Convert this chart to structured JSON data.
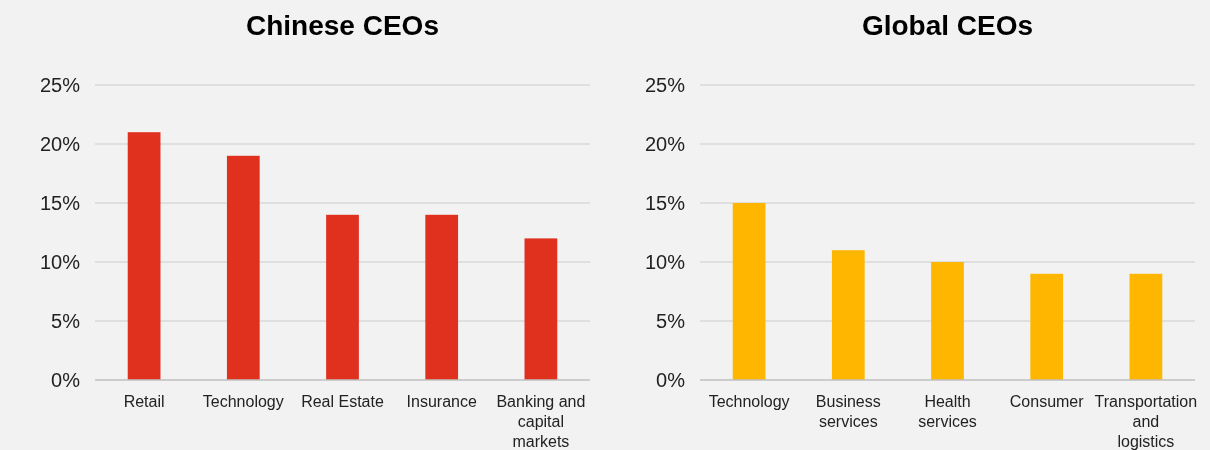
{
  "chart_data": [
    {
      "type": "bar",
      "title": "Chinese CEOs",
      "categories": [
        "Retail",
        "Technology",
        "Real Estate",
        "Insurance",
        "Banking and capital markets"
      ],
      "values": [
        21,
        19,
        14,
        14,
        12
      ],
      "color": "#e0301e",
      "ylim": [
        0,
        25
      ],
      "yticks": [
        {
          "value": 0,
          "label": "0%"
        },
        {
          "value": 5,
          "label": "5%"
        },
        {
          "value": 10,
          "label": "10%"
        },
        {
          "value": 15,
          "label": "15%"
        },
        {
          "value": 20,
          "label": "20%"
        },
        {
          "value": 25,
          "label": "25%"
        }
      ],
      "grid": "y"
    },
    {
      "type": "bar",
      "title": "Global CEOs",
      "categories": [
        "Technology",
        "Business services",
        "Health services",
        "Consumer",
        "Transportation and logistics"
      ],
      "values": [
        15,
        11,
        10,
        9,
        9
      ],
      "color": "#ffb600",
      "ylim": [
        0,
        25
      ],
      "yticks": [
        {
          "value": 0,
          "label": "0%"
        },
        {
          "value": 5,
          "label": "5%"
        },
        {
          "value": 10,
          "label": "10%"
        },
        {
          "value": 15,
          "label": "15%"
        },
        {
          "value": 20,
          "label": "20%"
        },
        {
          "value": 25,
          "label": "25%"
        }
      ],
      "grid": "y"
    }
  ]
}
